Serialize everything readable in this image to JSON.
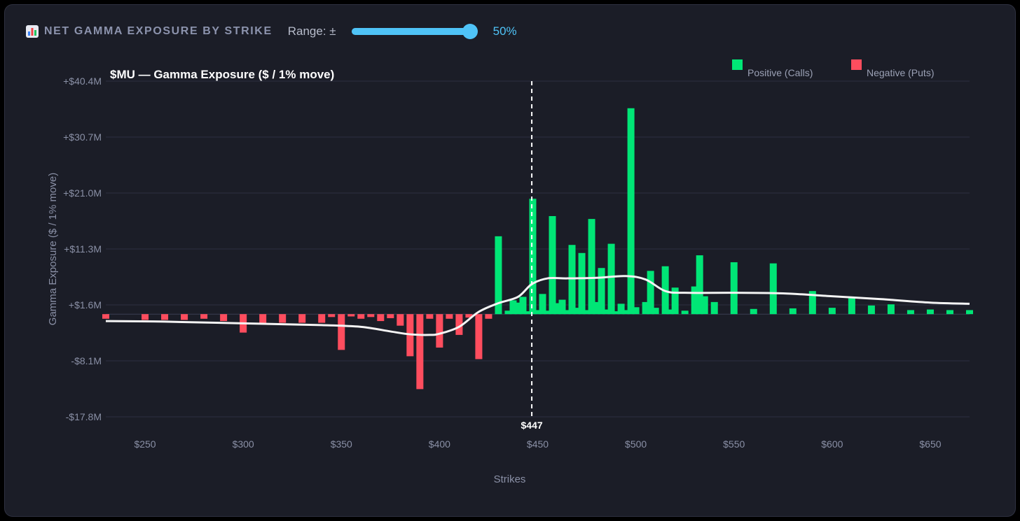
{
  "header": {
    "title": "NET GAMMA EXPOSURE BY STRIKE",
    "icon": "bar-chart-icon",
    "range_label": "Range: ±",
    "range_value": "50%",
    "range_fraction": 1.0
  },
  "colors": {
    "positive": "#00e676",
    "negative": "#ff4d5e",
    "accent": "#4fc3f7",
    "curve": "#f4f4f4",
    "grid": "#2c3041"
  },
  "chart_data": {
    "type": "bar",
    "title": "$MU — Gamma Exposure ($ / 1% move)",
    "xlabel": "Strikes",
    "ylabel": "Gamma Exposure ($ / 1% move)",
    "xlim": [
      230,
      670
    ],
    "ylim": [
      -17.8,
      40.4
    ],
    "y_ticks": [
      40.4,
      30.7,
      21.0,
      11.3,
      1.6,
      -8.1,
      -17.8
    ],
    "y_tick_labels": [
      "+$40.4M",
      "+$30.7M",
      "+$21.0M",
      "+$11.3M",
      "+$1.6M",
      "-$8.1M",
      "-$17.8M"
    ],
    "x_ticks": [
      250,
      300,
      350,
      400,
      450,
      500,
      550,
      600,
      650
    ],
    "x_tick_labels": [
      "$250",
      "$300",
      "$350",
      "$400",
      "$450",
      "$500",
      "$550",
      "$600",
      "$650"
    ],
    "grid": true,
    "legend_position": "top-right",
    "spot": {
      "value": 447,
      "label": "$447"
    },
    "series": [
      {
        "name": "Positive (Calls)",
        "strikes": [
          430,
          435,
          437.5,
          440,
          442.5,
          445,
          447.5,
          450,
          452.5,
          455,
          457.5,
          460,
          462.5,
          465,
          467.5,
          470,
          472.5,
          475,
          477.5,
          480,
          482.5,
          485,
          487.5,
          490,
          492.5,
          495,
          497.5,
          500,
          505,
          507.5,
          510,
          515,
          517.5,
          520,
          525,
          530,
          532.5,
          535,
          540,
          550,
          560,
          570,
          580,
          590,
          600,
          610,
          620,
          630,
          640,
          650,
          660,
          670
        ],
        "values": [
          13.5,
          0.6,
          2.4,
          2.0,
          3.0,
          0.5,
          20.0,
          0.7,
          3.5,
          0.6,
          17.0,
          1.9,
          2.5,
          0.7,
          12.0,
          1.1,
          10.6,
          0.7,
          16.5,
          2.1,
          8.0,
          0.8,
          12.2,
          0.5,
          1.8,
          0.7,
          35.7,
          1.2,
          2.1,
          7.5,
          1.1,
          8.3,
          0.8,
          4.6,
          0.6,
          4.8,
          10.2,
          3.1,
          2.1,
          9.0,
          0.9,
          8.8,
          1.0,
          4.0,
          1.1,
          2.9,
          1.5,
          1.7,
          0.7,
          0.8,
          0.7,
          0.7
        ]
      },
      {
        "name": "Negative (Puts)",
        "strikes": [
          230,
          250,
          260,
          270,
          280,
          290,
          300,
          310,
          320,
          330,
          340,
          345,
          350,
          355,
          360,
          365,
          370,
          375,
          380,
          385,
          390,
          395,
          400,
          405,
          410,
          415,
          420,
          425
        ],
        "values": [
          -0.8,
          -1.0,
          -1.0,
          -1.0,
          -0.8,
          -1.2,
          -3.2,
          -1.5,
          -1.5,
          -1.5,
          -1.5,
          -0.5,
          -6.2,
          -0.4,
          -0.8,
          -0.5,
          -1.2,
          -0.7,
          -2.0,
          -7.3,
          -13.0,
          -0.8,
          -5.8,
          -0.8,
          -3.6,
          -0.6,
          -7.8,
          -0.8
        ]
      }
    ],
    "trend_line": {
      "x": [
        230,
        260,
        300,
        340,
        360,
        375,
        385,
        395,
        400,
        410,
        420,
        430,
        440,
        447,
        455,
        465,
        480,
        495,
        505,
        515,
        525,
        550,
        575,
        600,
        625,
        650,
        670
      ],
      "y": [
        -1.2,
        -1.3,
        -1.6,
        -1.9,
        -2.2,
        -3.0,
        -3.5,
        -3.6,
        -3.4,
        -2.2,
        0.4,
        1.9,
        3.0,
        5.2,
        6.2,
        6.2,
        6.3,
        6.6,
        6.0,
        4.0,
        3.7,
        3.7,
        3.6,
        3.1,
        2.6,
        2.0,
        1.8
      ]
    }
  }
}
